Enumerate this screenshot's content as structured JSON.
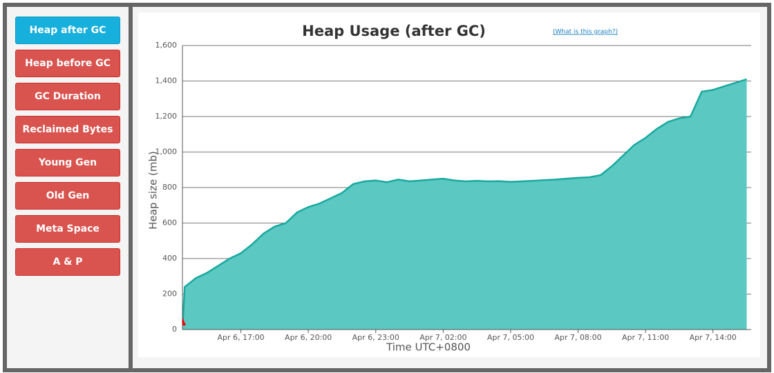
{
  "sidebar": {
    "buttons": [
      "Heap after GC",
      "Heap before GC",
      "GC Duration",
      "Reclaimed Bytes",
      "Young Gen",
      "Old Gen",
      "Meta Space",
      "A & P"
    ],
    "active": 0
  },
  "help_link": "(What is this graph?)",
  "chart_data": {
    "type": "area",
    "title": "Heap Usage (after GC)",
    "x_label": "Time UTC+0800",
    "y_label": "Heap size (mb)",
    "color": "#17a89e",
    "fill": "#5bc8c2",
    "grid": true,
    "xlim": [
      "Apr 6, 14:24",
      "Apr 7, 15:42"
    ],
    "xticks": [
      "Apr 6, 17:00",
      "Apr 6, 20:00",
      "Apr 6, 23:00",
      "Apr 7, 02:00",
      "Apr 7, 05:00",
      "Apr 7, 08:00",
      "Apr 7, 11:00",
      "Apr 7, 14:00"
    ],
    "ylim": [
      0,
      1600
    ],
    "yticks": [
      0,
      200,
      400,
      600,
      800,
      {
        "value": 1000,
        "label": "1,000"
      },
      {
        "value": 1200,
        "label": "1,200"
      },
      {
        "value": 1400,
        "label": "1,400"
      },
      {
        "value": 1600,
        "label": "1,600"
      }
    ],
    "x": [
      "Apr 6, 14:25",
      "Apr 6, 14:30",
      "Apr 6, 15:00",
      "Apr 6, 15:30",
      "Apr 6, 16:00",
      "Apr 6, 16:30",
      "Apr 6, 17:00",
      "Apr 6, 17:30",
      "Apr 6, 18:00",
      "Apr 6, 18:30",
      "Apr 6, 19:00",
      "Apr 6, 19:30",
      "Apr 6, 20:00",
      "Apr 6, 20:30",
      "Apr 6, 21:00",
      "Apr 6, 21:30",
      "Apr 6, 22:00",
      "Apr 6, 22:30",
      "Apr 6, 23:00",
      "Apr 6, 23:30",
      "Apr 7, 00:00",
      "Apr 7, 00:30",
      "Apr 7, 01:00",
      "Apr 7, 01:30",
      "Apr 7, 02:00",
      "Apr 7, 02:30",
      "Apr 7, 03:00",
      "Apr 7, 03:30",
      "Apr 7, 04:00",
      "Apr 7, 04:30",
      "Apr 7, 05:00",
      "Apr 7, 05:30",
      "Apr 7, 06:00",
      "Apr 7, 06:30",
      "Apr 7, 07:00",
      "Apr 7, 07:30",
      "Apr 7, 08:00",
      "Apr 7, 08:30",
      "Apr 7, 09:00",
      "Apr 7, 09:30",
      "Apr 7, 10:00",
      "Apr 7, 10:30",
      "Apr 7, 11:00",
      "Apr 7, 11:30",
      "Apr 7, 12:00",
      "Apr 7, 12:30",
      "Apr 7, 13:00",
      "Apr 7, 13:30",
      "Apr 7, 14:00",
      "Apr 7, 14:30",
      "Apr 7, 15:00",
      "Apr 7, 15:30"
    ],
    "values": [
      40,
      240,
      290,
      320,
      360,
      400,
      430,
      480,
      540,
      580,
      600,
      660,
      690,
      710,
      740,
      770,
      820,
      835,
      840,
      830,
      845,
      835,
      840,
      845,
      850,
      840,
      835,
      838,
      835,
      836,
      832,
      835,
      838,
      842,
      845,
      850,
      855,
      858,
      870,
      920,
      980,
      1040,
      1080,
      1130,
      1170,
      1190,
      1200,
      1340,
      1350,
      1370,
      1390,
      1410
    ]
  }
}
